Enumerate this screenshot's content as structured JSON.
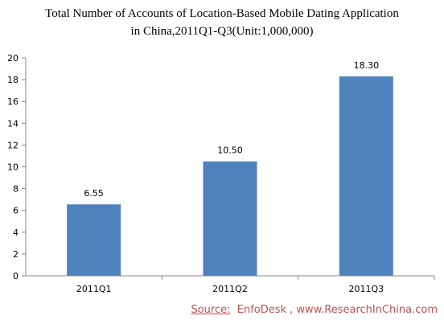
{
  "chart_data": {
    "type": "bar",
    "title_line1": "Total Number of Accounts of Location-Based Mobile Dating Application",
    "title_line2": "in China,2011Q1-Q3(Unit:1,000,000)",
    "categories": [
      "2011Q1",
      "2011Q2",
      "2011Q3"
    ],
    "values": [
      6.55,
      10.5,
      18.3
    ],
    "data_labels": [
      "6.55",
      "10.50",
      "18.30"
    ],
    "ylim": [
      0,
      20
    ],
    "yticks": [
      0,
      2,
      4,
      6,
      8,
      10,
      12,
      14,
      16,
      18,
      20
    ],
    "grid": false,
    "legend": "none",
    "bar_color": "#4f81bd"
  },
  "source": {
    "label": "Source:",
    "text": "EnfoDesk , www.ResearchInChina.com"
  }
}
